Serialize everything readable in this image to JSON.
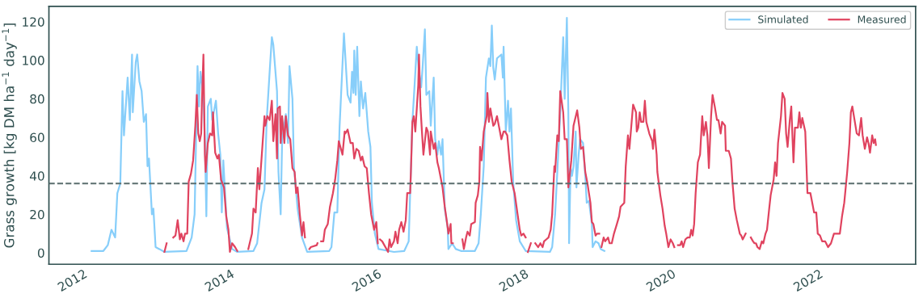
{
  "chart_data": {
    "type": "line",
    "ylabel": "Grass growth [kg DM ha$^{−1}$ day$^{−1}$]",
    "xlim": [
      2011.45,
      2023.23
    ],
    "xticks": [
      2012,
      2014,
      2016,
      2018,
      2020,
      2022
    ],
    "ylim": [
      -5.9,
      128
    ],
    "yticks": [
      0,
      20,
      40,
      60,
      80,
      100,
      120
    ],
    "grid": false,
    "legend": "top right",
    "marker": "none",
    "line_style": "solid",
    "ref_lines": [
      {
        "axis": "y",
        "value": 36,
        "color": "#5a6e6e",
        "line_style": "dashed"
      }
    ],
    "series": [
      {
        "name": "Simulated",
        "color": "#87cefa",
        "x": [
          2012.03,
          2012.19,
          2012.25,
          2012.3,
          2012.35,
          2012.38,
          2012.42,
          2012.45,
          2012.47,
          2012.52,
          2012.55,
          2012.58,
          2012.59,
          2012.63,
          2012.65,
          2012.68,
          2012.71,
          2012.74,
          2012.77,
          2012.79,
          2012.81,
          2012.85,
          2012.87,
          2012.9,
          2012.95,
          2013.02,
          2013.32,
          2013.39,
          2013.43,
          2013.45,
          2013.47,
          2013.49,
          2013.51,
          2013.55,
          2013.57,
          2013.59,
          2013.61,
          2013.65,
          2013.67,
          2013.72,
          2013.75,
          2013.78,
          2013.8,
          2013.82,
          2013.87,
          2013.94,
          2014.01,
          2014.23,
          2014.28,
          2014.34,
          2014.38,
          2014.41,
          2014.45,
          2014.48,
          2014.5,
          2014.55,
          2014.57,
          2014.6,
          2014.62,
          2014.67,
          2014.7,
          2014.72,
          2014.76,
          2014.78,
          2014.83,
          2014.89,
          2014.96,
          2015.26,
          2015.29,
          2015.33,
          2015.37,
          2015.4,
          2015.46,
          2015.51,
          2015.55,
          2015.57,
          2015.59,
          2015.6,
          2015.62,
          2015.64,
          2015.67,
          2015.69,
          2015.72,
          2015.75,
          2015.79,
          2015.82,
          2015.84,
          2015.88,
          2015.93,
          2016.14,
          2016.28,
          2016.34,
          2016.36,
          2016.39,
          2016.42,
          2016.45,
          2016.48,
          2016.51,
          2016.53,
          2016.56,
          2016.58,
          2016.62,
          2016.64,
          2016.68,
          2016.7,
          2016.73,
          2016.75,
          2016.78,
          2016.8,
          2016.83,
          2016.87,
          2016.88,
          2016.93,
          2016.98,
          2017.05,
          2017.24,
          2017.29,
          2017.32,
          2017.36,
          2017.39,
          2017.41,
          2017.43,
          2017.45,
          2017.47,
          2017.49,
          2017.51,
          2017.54,
          2017.6,
          2017.62,
          2017.63,
          2017.66,
          2017.69,
          2017.71,
          2017.73,
          2017.76,
          2017.8,
          2017.85,
          2017.93,
          2018.26,
          2018.29,
          2018.33,
          2018.36,
          2018.4,
          2018.44,
          2018.46,
          2018.49,
          2018.51,
          2018.52,
          2018.54,
          2018.56,
          2018.58,
          2018.61,
          2018.62,
          2018.65,
          2018.67,
          2018.71,
          2018.74,
          2018.76,
          2018.79,
          2018.83,
          2018.84,
          2018.88,
          2018.92,
          2018.95,
          2019.0
        ],
        "values": [
          1,
          1,
          4,
          12,
          8,
          31,
          36,
          84,
          61,
          91,
          69,
          103,
          73,
          99,
          103,
          89,
          84,
          68,
          72,
          45,
          49,
          20,
          23,
          3,
          2,
          0.5,
          1,
          8,
          20,
          59,
          97,
          76,
          94,
          82,
          57,
          19,
          76,
          80,
          69,
          79,
          62,
          51,
          21,
          48,
          13,
          2,
          0.5,
          1,
          5,
          26,
          33,
          69,
          94,
          112,
          108,
          84,
          42,
          20,
          59,
          72,
          57,
          97,
          80,
          45,
          23,
          8,
          0.5,
          1,
          3,
          21,
          21,
          65,
          114,
          82,
          78,
          94,
          83,
          105,
          82,
          107,
          71,
          89,
          75,
          83,
          63,
          55,
          26,
          10,
          2,
          0.5,
          1,
          6,
          31,
          68,
          87,
          107,
          94,
          86,
          97,
          116,
          82,
          84,
          66,
          91,
          59,
          51,
          58,
          51,
          59,
          23,
          13,
          2,
          5,
          2,
          1,
          1,
          5,
          20,
          45,
          91,
          96,
          101,
          97,
          118,
          96,
          90,
          101,
          103,
          91,
          107,
          63,
          79,
          63,
          75,
          37,
          17,
          6,
          1,
          0.5,
          3,
          20,
          42,
          73,
          112,
          80,
          122,
          73,
          5,
          44,
          40,
          45,
          63,
          34,
          51,
          59,
          57,
          40,
          26,
          27,
          15,
          3,
          6,
          5,
          2,
          1
        ]
      },
      {
        "name": "Measured",
        "color": "#e0435f",
        "x": [
          2013.02,
          2013.05,
          2013.1,
          2013.14,
          2013.17,
          2013.2,
          2013.23,
          2013.25,
          2013.28,
          2013.3,
          2013.33,
          2013.35,
          2013.38,
          2013.41,
          2013.44,
          2013.46,
          2013.48,
          2013.5,
          2013.52,
          2013.53,
          2013.55,
          2013.57,
          2013.58,
          2013.61,
          2013.64,
          2013.67,
          2013.68,
          2013.71,
          2013.74,
          2013.76,
          2013.79,
          2013.83,
          2013.86,
          2013.89,
          2013.91,
          2013.94,
          2013.98,
          2014.01,
          2014.08,
          2014.16,
          2014.21,
          2014.23,
          2014.26,
          2014.29,
          2014.31,
          2014.34,
          2014.38,
          2014.39,
          2014.42,
          2014.45,
          2014.48,
          2014.5,
          2014.53,
          2014.55,
          2014.56,
          2014.59,
          2014.6,
          2014.62,
          2014.65,
          2014.67,
          2014.7,
          2014.73,
          2014.76,
          2014.79,
          2014.81,
          2014.83,
          2014.86,
          2014.89,
          2014.91,
          2014.93,
          2014.96,
          2014.99,
          2015.01,
          2015.09,
          2015.1,
          2015.13,
          2015.15,
          2015.18,
          2015.2,
          2015.24,
          2015.27,
          2015.31,
          2015.34,
          2015.37,
          2015.39,
          2015.44,
          2015.47,
          2015.48,
          2015.51,
          2015.55,
          2015.58,
          2015.6,
          2015.63,
          2015.66,
          2015.69,
          2015.71,
          2015.74,
          2015.77,
          2015.8,
          2015.83,
          2015.87,
          2015.9,
          2015.92,
          2015.935,
          2015.95,
          2015.98,
          2016.06,
          2016.08,
          2016.1,
          2016.14,
          2016.16,
          2016.19,
          2016.21,
          2016.24,
          2016.27,
          2016.3,
          2016.32,
          2016.36,
          2016.37,
          2016.39,
          2016.41,
          2016.43,
          2016.47,
          2016.48,
          2016.5,
          2016.52,
          2016.54,
          2016.58,
          2016.6,
          2016.63,
          2016.64,
          2016.68,
          2016.7,
          2016.73,
          2016.75,
          2016.8,
          2016.83,
          2016.86,
          2016.88,
          2016.91,
          2016.92,
          2016.94,
          2017.0,
          2017.07,
          2017.09,
          2017.12,
          2017.14,
          2017.17,
          2017.19,
          2017.24,
          2017.25,
          2017.28,
          2017.3,
          2017.31,
          2017.33,
          2017.36,
          2017.4,
          2017.41,
          2017.43,
          2017.45,
          2017.49,
          2017.51,
          2017.54,
          2017.57,
          2017.6,
          2017.63,
          2017.65,
          2017.68,
          2017.71,
          2017.74,
          2017.78,
          2017.82,
          2017.85,
          2017.87,
          2017.9,
          2017.93,
          2017.945,
          2017.96,
          2018.0,
          2018.03,
          2018.06,
          2018.08,
          2018.1,
          2018.13,
          2018.16,
          2018.18,
          2018.21,
          2018.24,
          2018.27,
          2018.29,
          2018.32,
          2018.33,
          2018.36,
          2018.38,
          2018.4,
          2018.44,
          2018.46,
          2018.49,
          2018.51,
          2018.55,
          2018.58,
          2018.63,
          2018.66,
          2018.68,
          2018.71,
          2018.74,
          2018.77,
          2018.81,
          2018.83,
          2018.85,
          2018.88,
          2018.9,
          2018.93,
          2018.945,
          2018.96,
          2018.99,
          2019.01,
          2019.05,
          2019.07,
          2019.1,
          2019.13,
          2019.17,
          2019.2,
          2019.22,
          2019.27,
          2019.29,
          2019.32,
          2019.34,
          2019.39,
          2019.43,
          2019.44,
          2019.46,
          2019.48,
          2019.5,
          2019.53,
          2019.55,
          2019.57,
          2019.61,
          2019.65,
          2019.66,
          2019.68,
          2019.71,
          2019.72,
          2019.76,
          2019.79,
          2019.82,
          2019.84,
          2019.87,
          2019.9,
          2019.93,
          2019.95,
          2019.975,
          2020.0,
          2020.03,
          2020.05,
          2020.07,
          2020.1,
          2020.13,
          2020.16,
          2020.18,
          2020.2,
          2020.22,
          2020.24,
          2020.27,
          2020.3,
          2020.33,
          2020.35,
          2020.38,
          2020.4,
          2020.42,
          2020.45,
          2020.47,
          2020.5,
          2020.53,
          2020.55,
          2020.58,
          2020.6,
          2020.64,
          2020.65,
          2020.69,
          2020.72,
          2020.74,
          2020.77,
          2020.8,
          2020.84,
          2020.86,
          2020.88,
          2020.92,
          2020.955,
          2020.99,
          2021.02,
          2021.04,
          2021.06,
          2021.08,
          2021.11,
          2021.14,
          2021.16,
          2021.19,
          2021.21,
          2021.24,
          2021.26,
          2021.3,
          2021.32,
          2021.34,
          2021.36,
          2021.4,
          2021.42,
          2021.45,
          2021.47,
          2021.49,
          2021.52,
          2021.54,
          2021.57,
          2021.59,
          2021.63,
          2021.65,
          2021.67,
          2021.69,
          2021.73,
          2021.76,
          2021.8,
          2021.85,
          2021.88,
          2021.9,
          2021.93,
          2021.96,
          2022.0,
          2022.04,
          2022.08,
          2022.12,
          2022.18,
          2022.2,
          2022.23,
          2022.26,
          2022.3,
          2022.33,
          2022.35,
          2022.37,
          2022.4,
          2022.43,
          2022.46,
          2022.49,
          2022.51,
          2022.54,
          2022.57,
          2022.59,
          2022.61,
          2022.64,
          2022.66,
          2022.68,
          2022.69
        ],
        "values": [
          0.5,
          5,
          null,
          8,
          9,
          17,
          7,
          10,
          6,
          10,
          10,
          37,
          41,
          48,
          66,
          82,
          62,
          58,
          62,
          79,
          103,
          51,
          42,
          57,
          62,
          61,
          73,
          52,
          49,
          51,
          38,
          34,
          19,
          12,
          0.5,
          5,
          3,
          1,
          null,
          2,
          10,
          23,
          21,
          44,
          33,
          49,
          71,
          66,
          71,
          69,
          79,
          58,
          72,
          49,
          75,
          76,
          57,
          71,
          57,
          71,
          61,
          59,
          44,
          42,
          31,
          34,
          20,
          9,
          16,
          8,
          null,
          2,
          3,
          4,
          5,
          null,
          6,
          6,
          12,
          15,
          24,
          31,
          38,
          48,
          58,
          51,
          63,
          62,
          64,
          57,
          57,
          49,
          54,
          53,
          48,
          50,
          45,
          44,
          31,
          20,
          12,
          16,
          5,
          null,
          7,
          6,
          0.5,
          7,
          3,
          6,
          11,
          5,
          12,
          16,
          11,
          17,
          31,
          31,
          42,
          68,
          71,
          63,
          87,
          103,
          76,
          63,
          51,
          65,
          63,
          51,
          63,
          54,
          57,
          47,
          44,
          34,
          24,
          16,
          10,
          15,
          5,
          5,
          null,
          7,
          2,
          8,
          11,
          9,
          15,
          16,
          26,
          30,
          37,
          55,
          48,
          63,
          71,
          83,
          68,
          75,
          66,
          67,
          71,
          65,
          59,
          63,
          63,
          61,
          48,
          37,
          31,
          20,
          12,
          9,
          10,
          8,
          null,
          0.5,
          5,
          null,
          5,
          4,
          3,
          5,
          3,
          6,
          7,
          8,
          12,
          20,
          45,
          42,
          61,
          58,
          84,
          73,
          59,
          59,
          34,
          48,
          66,
          74,
          65,
          54,
          55,
          42,
          36,
          26,
          16,
          15,
          9,
          10,
          10,
          null,
          3,
          8,
          6,
          8,
          5,
          5,
          10,
          15,
          19,
          24,
          26,
          45,
          61,
          54,
          77,
          73,
          63,
          65,
          73,
          68,
          68,
          79,
          68,
          62,
          58,
          54,
          64,
          51,
          42,
          30,
          23,
          14,
          10,
          3,
          7,
          5,
          3,
          null,
          4,
          4,
          6,
          3,
          7,
          8,
          8,
          12,
          9,
          15,
          31,
          47,
          51,
          71,
          61,
          68,
          61,
          44,
          71,
          82,
          76,
          69,
          69,
          62,
          68,
          66,
          53,
          53,
          49,
          37,
          23,
          17,
          10,
          9,
          7,
          10,
          null,
          8,
          6,
          5,
          5,
          3,
          2,
          6,
          5,
          10,
          12,
          23,
          30,
          38,
          47,
          40,
          57,
          71,
          83,
          80,
          62,
          55,
          69,
          76,
          47,
          65,
          65,
          73,
          65,
          70,
          63,
          31,
          31,
          21,
          21,
          10,
          9,
          6,
          6,
          3,
          5,
          10,
          10,
          10,
          19,
          26,
          42,
          57,
          73,
          76,
          69,
          62,
          61,
          70,
          61,
          54,
          60,
          57,
          52,
          61,
          57,
          59,
          56
        ]
      }
    ]
  }
}
